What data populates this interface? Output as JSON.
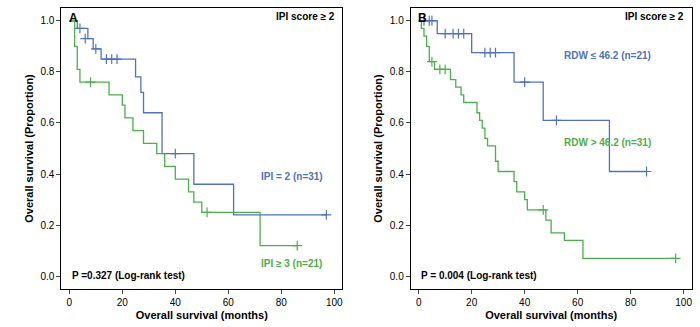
{
  "chart_data": [
    {
      "type": "line",
      "panel": "A",
      "subtitle": "IPI score ≥ 2",
      "x_label": "Overall survival (months)",
      "y_label": "Overall survival (Proportion)",
      "annotations": [
        "P =0.327 (Log-rank test)"
      ],
      "xlim": [
        -3,
        103
      ],
      "xticks": [
        0,
        20,
        40,
        60,
        80,
        100
      ],
      "ylim": [
        -0.05,
        1.05
      ],
      "yticks": [
        {
          "value": 0,
          "label": "0.0"
        },
        0.2,
        0.4,
        0.6,
        0.8,
        {
          "value": 1,
          "label": "1.0"
        }
      ],
      "line_style": "step",
      "marker": "plus",
      "grid": false,
      "series": [
        {
          "name": "IPI = 2 (n=31)",
          "color": "#4f73b8",
          "x": [
            0,
            3,
            7,
            9,
            12,
            25,
            27,
            28,
            35,
            47,
            62,
            97
          ],
          "values": [
            1.0,
            0.97,
            0.93,
            0.89,
            0.85,
            0.78,
            0.72,
            0.64,
            0.48,
            0.36,
            0.24,
            0.24
          ],
          "censored": {
            "x": [
              4,
              6,
              10,
              14,
              16,
              18,
              40,
              97
            ],
            "values": [
              0.97,
              0.93,
              0.89,
              0.85,
              0.85,
              0.85,
              0.48,
              0.24
            ]
          }
        },
        {
          "name": "IPI ≥ 3 (n=21)",
          "color": "#4cae4c",
          "x": [
            0,
            2,
            3,
            4,
            15,
            20,
            21,
            24,
            28,
            33,
            36,
            40,
            45,
            47,
            50,
            72,
            86
          ],
          "values": [
            1.0,
            0.9,
            0.81,
            0.76,
            0.71,
            0.67,
            0.62,
            0.57,
            0.52,
            0.48,
            0.43,
            0.38,
            0.33,
            0.29,
            0.25,
            0.12,
            0.12
          ],
          "censored": {
            "x": [
              8,
              52,
              86
            ],
            "values": [
              0.76,
              0.25,
              0.12
            ]
          }
        }
      ]
    },
    {
      "type": "line",
      "panel": "B",
      "subtitle": "IPI score ≥ 2",
      "x_label": "Overall survival (months)",
      "y_label": "Overall survival (Proportion)",
      "annotations": [
        "P = 0.004 (Log-rank test)"
      ],
      "xlim": [
        -3,
        103
      ],
      "xticks": [
        0,
        20,
        40,
        60,
        80,
        100
      ],
      "ylim": [
        -0.05,
        1.05
      ],
      "yticks": [
        {
          "value": 0,
          "label": "0.0"
        },
        0.2,
        0.4,
        0.6,
        0.8,
        {
          "value": 1,
          "label": "1.0"
        }
      ],
      "line_style": "step",
      "marker": "plus",
      "grid": false,
      "series": [
        {
          "name": "RDW ≤ 46.2 (n=21)",
          "color": "#4f73b8",
          "x": [
            0,
            7,
            20,
            36,
            47,
            72,
            86
          ],
          "values": [
            1.0,
            0.95,
            0.875,
            0.76,
            0.61,
            0.41,
            0.41
          ],
          "censored": {
            "x": [
              2,
              4,
              5,
              10,
              13,
              15,
              17,
              25,
              27,
              29,
              40,
              52,
              86
            ],
            "values": [
              1.0,
              1.0,
              1.0,
              0.95,
              0.95,
              0.95,
              0.95,
              0.875,
              0.875,
              0.875,
              0.76,
              0.61,
              0.41
            ]
          }
        },
        {
          "name": "RDW > 46.2 (n=31)",
          "color": "#4cae4c",
          "x": [
            0,
            1,
            2,
            3,
            4,
            6,
            12,
            14,
            16,
            17,
            22,
            23,
            24,
            25,
            26,
            29,
            30,
            36,
            37,
            40,
            41,
            48,
            50,
            55,
            62,
            97
          ],
          "values": [
            1.0,
            0.97,
            0.94,
            0.9,
            0.84,
            0.81,
            0.77,
            0.74,
            0.71,
            0.68,
            0.64,
            0.61,
            0.58,
            0.54,
            0.51,
            0.45,
            0.41,
            0.37,
            0.33,
            0.3,
            0.26,
            0.22,
            0.17,
            0.14,
            0.07,
            0.07
          ],
          "censored": {
            "x": [
              5,
              8,
              10,
              47,
              97
            ],
            "values": [
              0.84,
              0.81,
              0.81,
              0.26,
              0.07
            ]
          }
        }
      ]
    }
  ]
}
